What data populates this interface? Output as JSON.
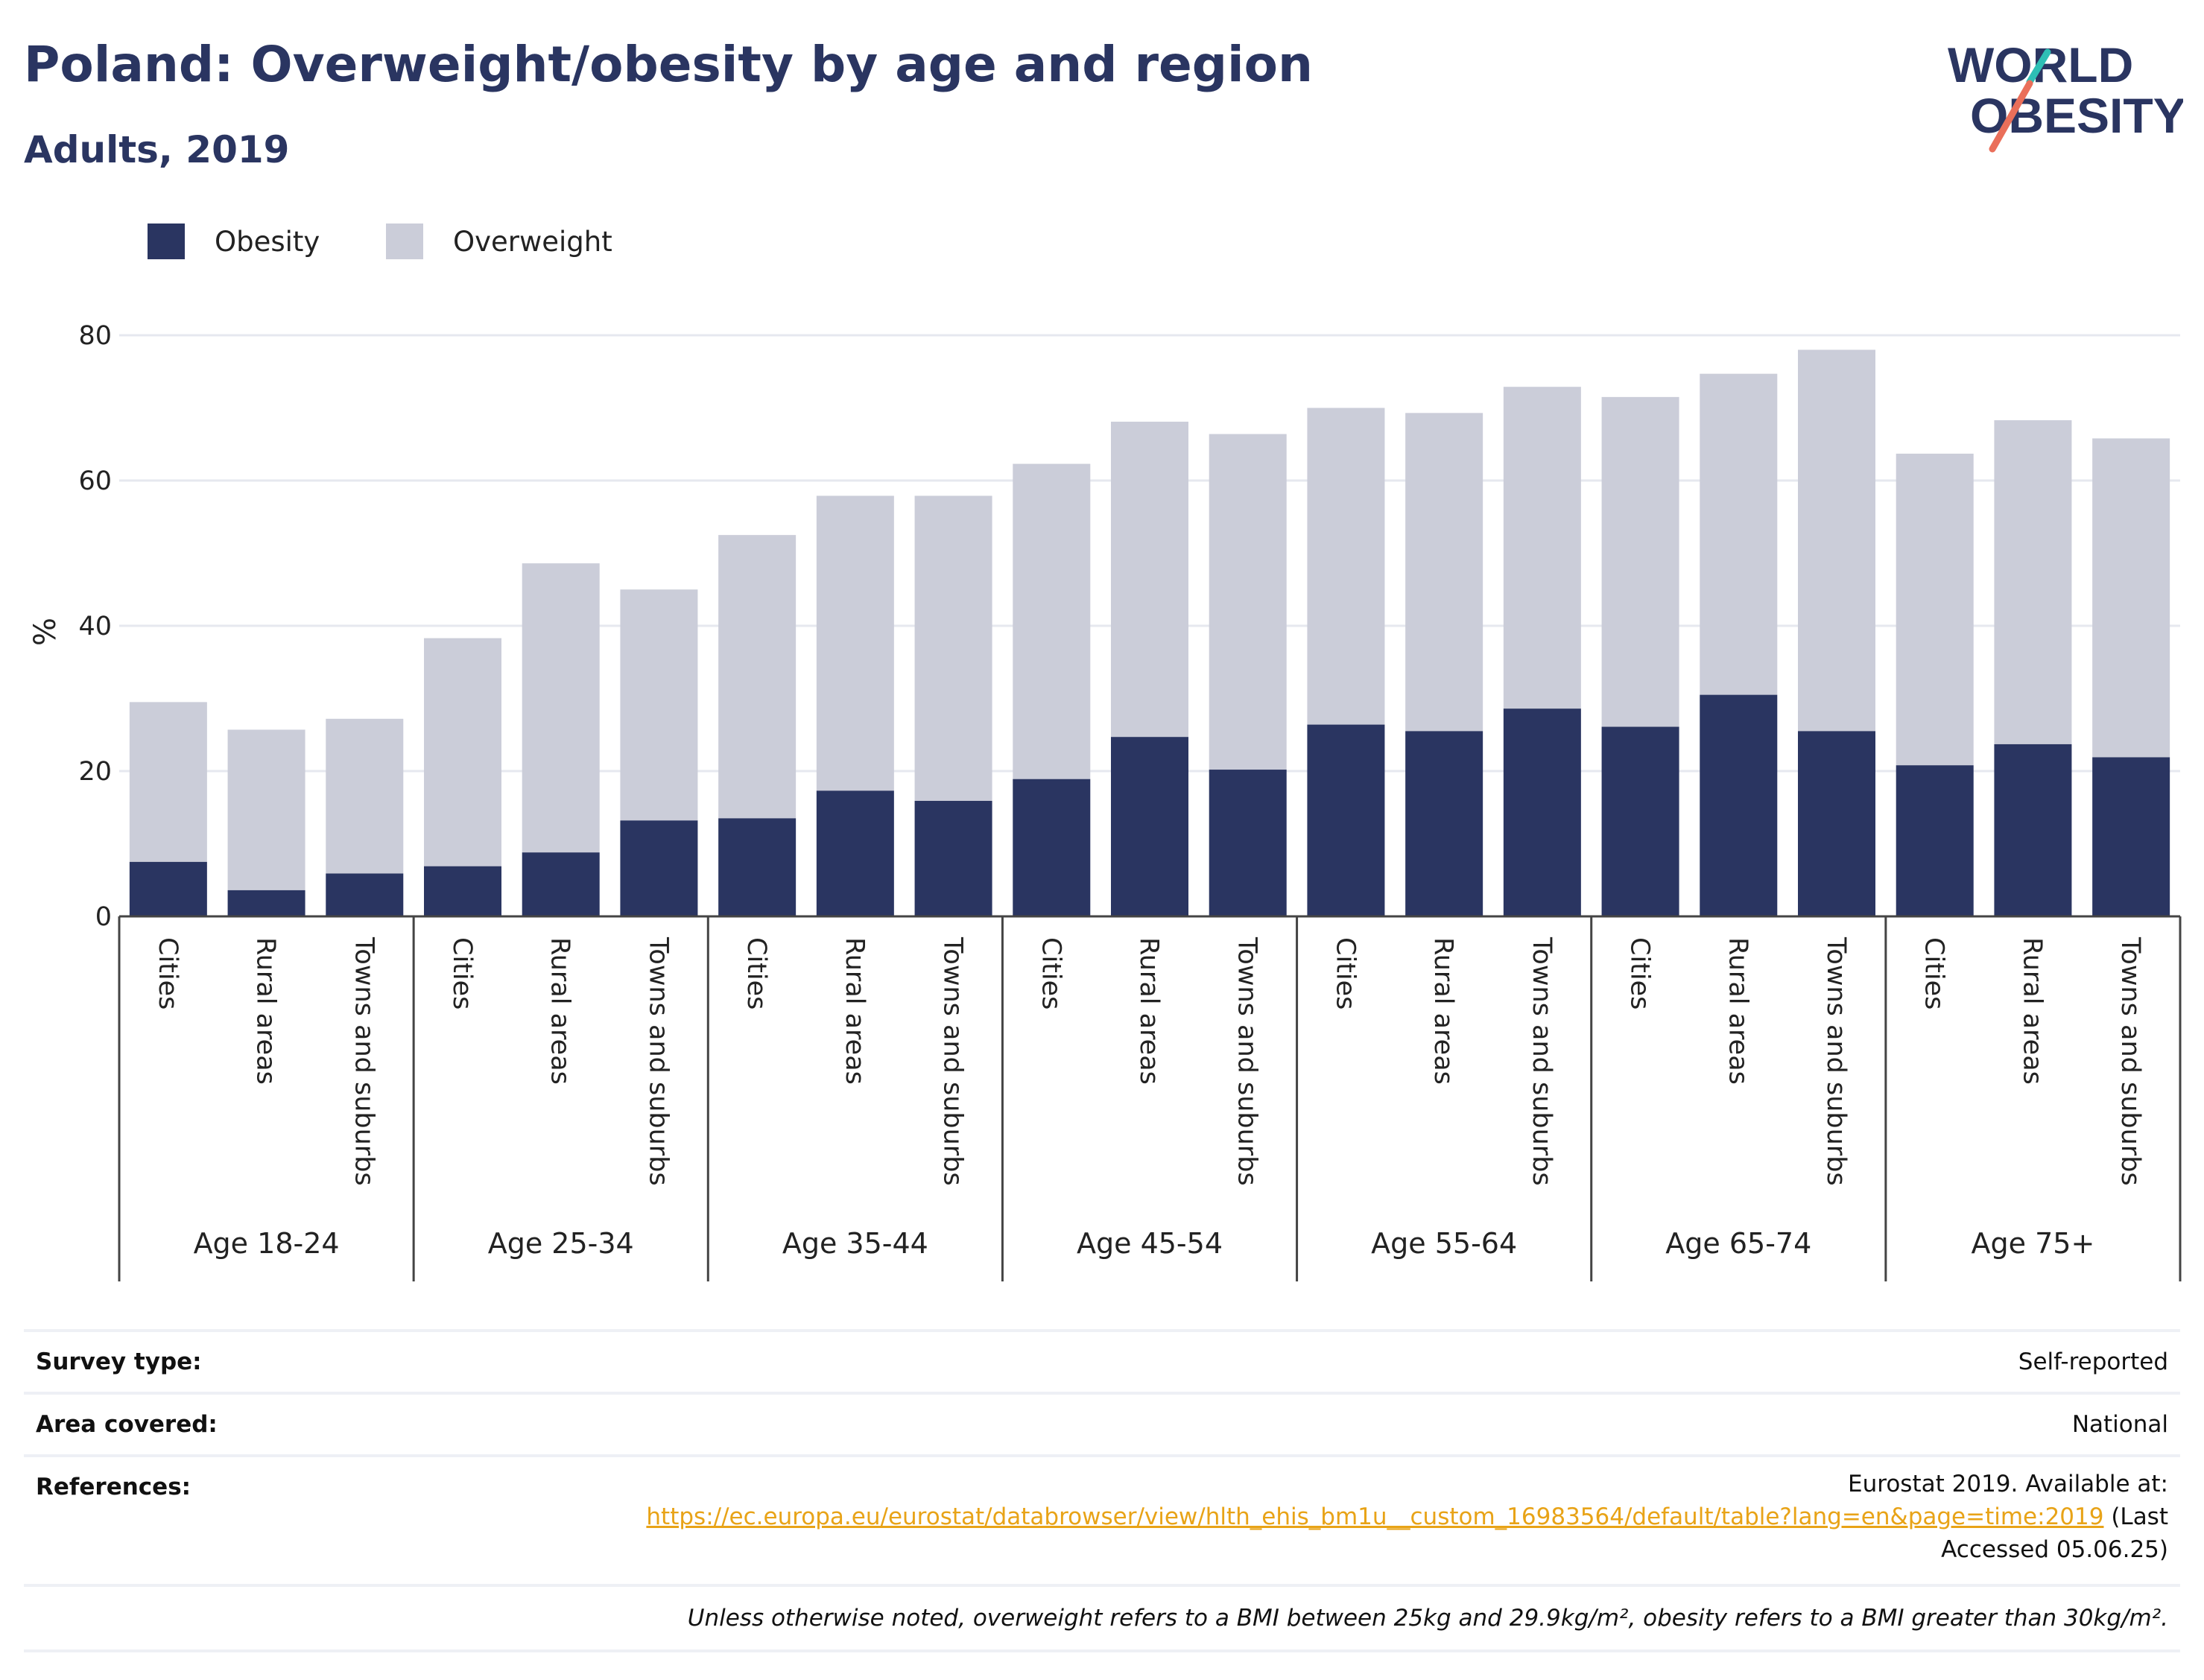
{
  "title": "Poland: Overweight/obesity by age and region",
  "subtitle": "Adults, 2019",
  "logo": {
    "line1": "WORLD",
    "line2": "OBESITY"
  },
  "legend": [
    {
      "name": "Obesity",
      "color": "#2a3561"
    },
    {
      "name": "Overweight",
      "color": "#cbcdd9"
    }
  ],
  "chart_data": {
    "type": "bar",
    "stacked": true,
    "ylabel": "%",
    "ylim": [
      0,
      80
    ],
    "yticks": [
      0,
      20,
      40,
      60,
      80
    ],
    "grid": true,
    "legend_position": "top-left",
    "groups": [
      "Age 18-24",
      "Age 25-34",
      "Age 35-44",
      "Age 45-54",
      "Age 55-64",
      "Age 65-74",
      "Age 75+"
    ],
    "subcategories": [
      "Cities",
      "Rural areas",
      "Towns and suburbs"
    ],
    "series": [
      {
        "name": "Obesity",
        "color": "#2a3561",
        "values": [
          7.5,
          3.6,
          5.9,
          6.9,
          8.8,
          13.2,
          13.5,
          17.3,
          15.9,
          18.9,
          24.7,
          20.2,
          26.4,
          25.5,
          28.6,
          26.1,
          30.5,
          25.5,
          20.8,
          23.7,
          21.9
        ]
      },
      {
        "name": "Overweight",
        "color": "#cbcdd9",
        "values": [
          22.0,
          22.1,
          21.3,
          31.4,
          39.8,
          31.8,
          39.0,
          40.6,
          42.0,
          43.4,
          43.4,
          46.2,
          43.6,
          43.8,
          44.3,
          45.4,
          44.2,
          52.5,
          42.9,
          44.6,
          43.9
        ]
      }
    ],
    "totals": [
      29.5,
      25.7,
      27.2,
      38.3,
      48.6,
      45.0,
      52.5,
      57.9,
      57.9,
      62.3,
      68.1,
      66.4,
      70.0,
      69.3,
      72.9,
      71.5,
      74.7,
      78.0,
      63.7,
      68.3,
      65.8
    ]
  },
  "meta": {
    "survey_type_label": "Survey type:",
    "survey_type_value": "Self-reported",
    "area_label": "Area covered:",
    "area_value": "National",
    "references_label": "References:",
    "references_prefix": "Eurostat 2019. Available at:",
    "references_link": "https://ec.europa.eu/eurostat/databrowser/view/hlth_ehis_bm1u__custom_16983564/default/table?lang=en&page=time:2019",
    "references_suffix_1": " (Last",
    "references_suffix_2": "Accessed 05.06.25)",
    "note": "Unless otherwise noted, overweight refers to a BMI between 25kg and 29.9kg/m², obesity refers to a BMI greater than 30kg/m²."
  }
}
